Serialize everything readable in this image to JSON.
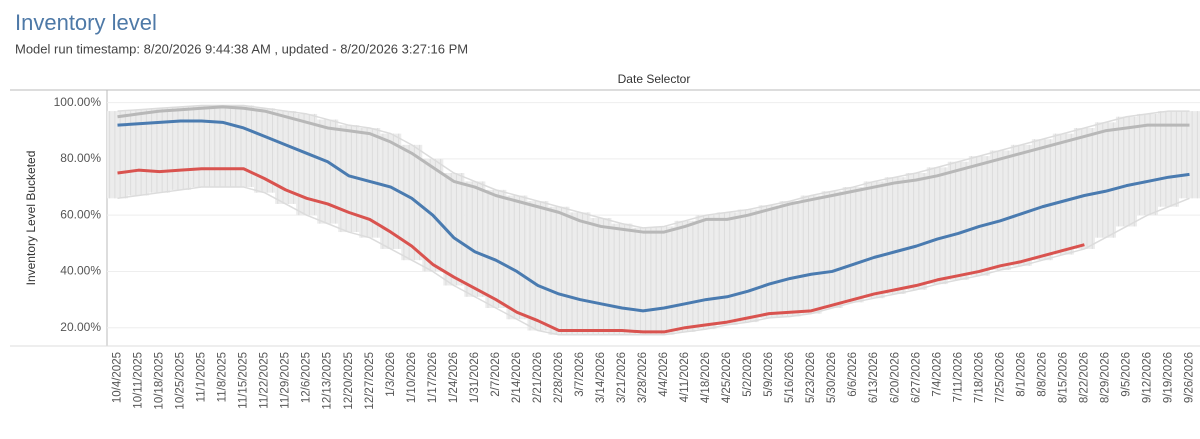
{
  "chart_data": {
    "type": "line",
    "title": "Inventory level",
    "subtitle": "Model run timestamp: 8/20/2026 9:44:38 AM , updated  - 8/20/2026 3:27:16 PM",
    "header": "Date Selector",
    "y_label": "Inventory Level Bucketed",
    "categories": [
      "10/4/2025",
      "10/11/2025",
      "10/18/2025",
      "10/25/2025",
      "11/1/2025",
      "11/8/2025",
      "11/15/2025",
      "11/22/2025",
      "11/29/2025",
      "12/6/2025",
      "12/13/2025",
      "12/20/2025",
      "12/27/2025",
      "1/3/2026",
      "1/10/2026",
      "1/17/2026",
      "1/24/2026",
      "1/31/2026",
      "2/7/2026",
      "2/14/2026",
      "2/21/2026",
      "2/28/2026",
      "3/7/2026",
      "3/14/2026",
      "3/21/2026",
      "3/28/2026",
      "4/4/2026",
      "4/11/2026",
      "4/18/2026",
      "4/25/2026",
      "5/2/2026",
      "5/9/2026",
      "5/16/2026",
      "5/23/2026",
      "5/30/2026",
      "6/6/2026",
      "6/13/2026",
      "6/20/2026",
      "6/27/2026",
      "7/4/2026",
      "7/11/2026",
      "7/18/2026",
      "7/25/2026",
      "8/1/2026",
      "8/8/2026",
      "8/15/2026",
      "8/22/2026",
      "8/29/2026",
      "9/5/2026",
      "9/12/2026",
      "9/19/2026",
      "9/26/2026"
    ],
    "series": [
      {
        "color": "#4a7bb0",
        "values": [
          92,
          92.5,
          93,
          93.5,
          93.5,
          93,
          91,
          88,
          85,
          82,
          79,
          74,
          72,
          70,
          66,
          60,
          52,
          47,
          44,
          40,
          35,
          32,
          30,
          28.5,
          27,
          26,
          27,
          28.5,
          30,
          31,
          33,
          35.5,
          37.5,
          39,
          40,
          42.5,
          45,
          47,
          49,
          51.5,
          53.5,
          56,
          58,
          60.5,
          63,
          65,
          67,
          68.5,
          70.5,
          72,
          73.5,
          74.5
        ]
      },
      {
        "color": "#d9534f",
        "values": [
          75,
          76,
          75.5,
          76,
          76.5,
          76.5,
          76.5,
          73,
          69,
          66,
          64,
          61,
          58.5,
          54,
          49,
          42.5,
          38,
          34,
          30,
          25.5,
          22.5,
          19,
          19,
          19,
          19,
          18.5,
          18.5,
          20,
          21,
          22,
          23.5,
          25,
          25.5,
          26,
          28,
          30,
          32,
          33.5,
          35,
          37,
          38.5,
          40,
          42,
          43.5,
          45.5,
          47.5,
          49.5,
          null,
          null,
          null,
          null,
          null
        ]
      },
      {
        "color": "#b8b8b8",
        "values": [
          95,
          96,
          97,
          97.5,
          98,
          98.5,
          98,
          97,
          95,
          93,
          91,
          90,
          89,
          86,
          82,
          77,
          72,
          70,
          67,
          65,
          63,
          61,
          58,
          56,
          55,
          54,
          54,
          56,
          58.5,
          58.5,
          60,
          62,
          64,
          65.5,
          67,
          68.5,
          70,
          71.5,
          72.5,
          74,
          76,
          78,
          80,
          82,
          84,
          86,
          88,
          90,
          91,
          92,
          92,
          92
        ]
      },
      {
        "color": "#dcdcdc",
        "values": [
          97,
          97.5,
          98,
          98.5,
          99,
          99,
          99,
          98,
          97,
          96,
          94,
          92,
          91,
          89,
          85,
          80,
          75,
          72,
          69,
          67,
          65,
          63,
          61,
          59,
          57,
          55.5,
          56,
          58,
          60,
          61,
          62,
          63.5,
          65,
          67,
          68.5,
          70,
          72,
          73.5,
          75,
          77,
          79,
          81,
          83,
          85,
          87,
          89,
          91,
          93,
          95,
          96,
          97,
          97
        ]
      },
      {
        "color": "#dcdcdc",
        "values": [
          66,
          67,
          68,
          69,
          70,
          70,
          70,
          68,
          64,
          60,
          57,
          54,
          52,
          48,
          44,
          40,
          35,
          31,
          27,
          23,
          19,
          17.5,
          17.5,
          17.5,
          17.5,
          17.5,
          17.5,
          18.5,
          19.5,
          21,
          22,
          23.5,
          24,
          25,
          27,
          29,
          30.5,
          32,
          33.5,
          35.5,
          37,
          38.5,
          40.5,
          42,
          44,
          46,
          48,
          52,
          56,
          60,
          63,
          66
        ]
      }
    ],
    "ylim": [
      13.5,
      104.5
    ],
    "yticks": [
      {
        "value": 20,
        "label": "20.00%"
      },
      {
        "value": 40,
        "label": "40.00%"
      },
      {
        "value": 60,
        "label": "60.00%"
      },
      {
        "value": 80,
        "label": "80.00%"
      },
      {
        "value": 100,
        "label": "100.00%"
      }
    ],
    "grid": true
  }
}
